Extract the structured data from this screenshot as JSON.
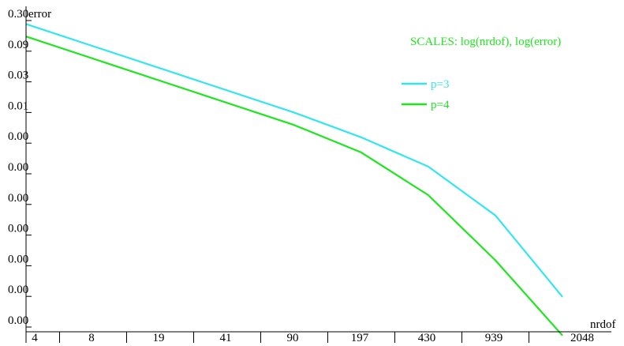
{
  "chart_data": {
    "type": "line",
    "xlabel": "nrdof",
    "ylabel": "error",
    "x_scale": "log",
    "y_scale": "log",
    "x_tick_labels": [
      "4",
      "8",
      "19",
      "41",
      "90",
      "197",
      "430",
      "939",
      "2048"
    ],
    "y_tick_labels": [
      "0.30",
      "0.09",
      "0.03",
      "0.01",
      "0.00",
      "0.00",
      "0.00",
      "0.00",
      "0.00",
      "0.00",
      "0.00"
    ],
    "x_range": [
      4,
      2048
    ],
    "y_range": [
      4e-06,
      0.3
    ],
    "annotation": "SCALES: log(nrdof), log(error)",
    "series": [
      {
        "name": "p=3",
        "color": "#33e6ee",
        "x": [
          4,
          90,
          197,
          430,
          939,
          2048
        ],
        "y": [
          0.25,
          0.0105,
          0.0043,
          0.0015,
          0.00026,
          1.4e-05
        ]
      },
      {
        "name": "p=4",
        "color": "#1ee61e",
        "x": [
          4,
          90,
          197,
          430,
          939,
          2048
        ],
        "y": [
          0.16,
          0.0067,
          0.0025,
          0.00054,
          5.2e-05,
          3.5e-06
        ]
      }
    ],
    "legend_position": "top-right",
    "annotation_color": "#1ee61e"
  }
}
